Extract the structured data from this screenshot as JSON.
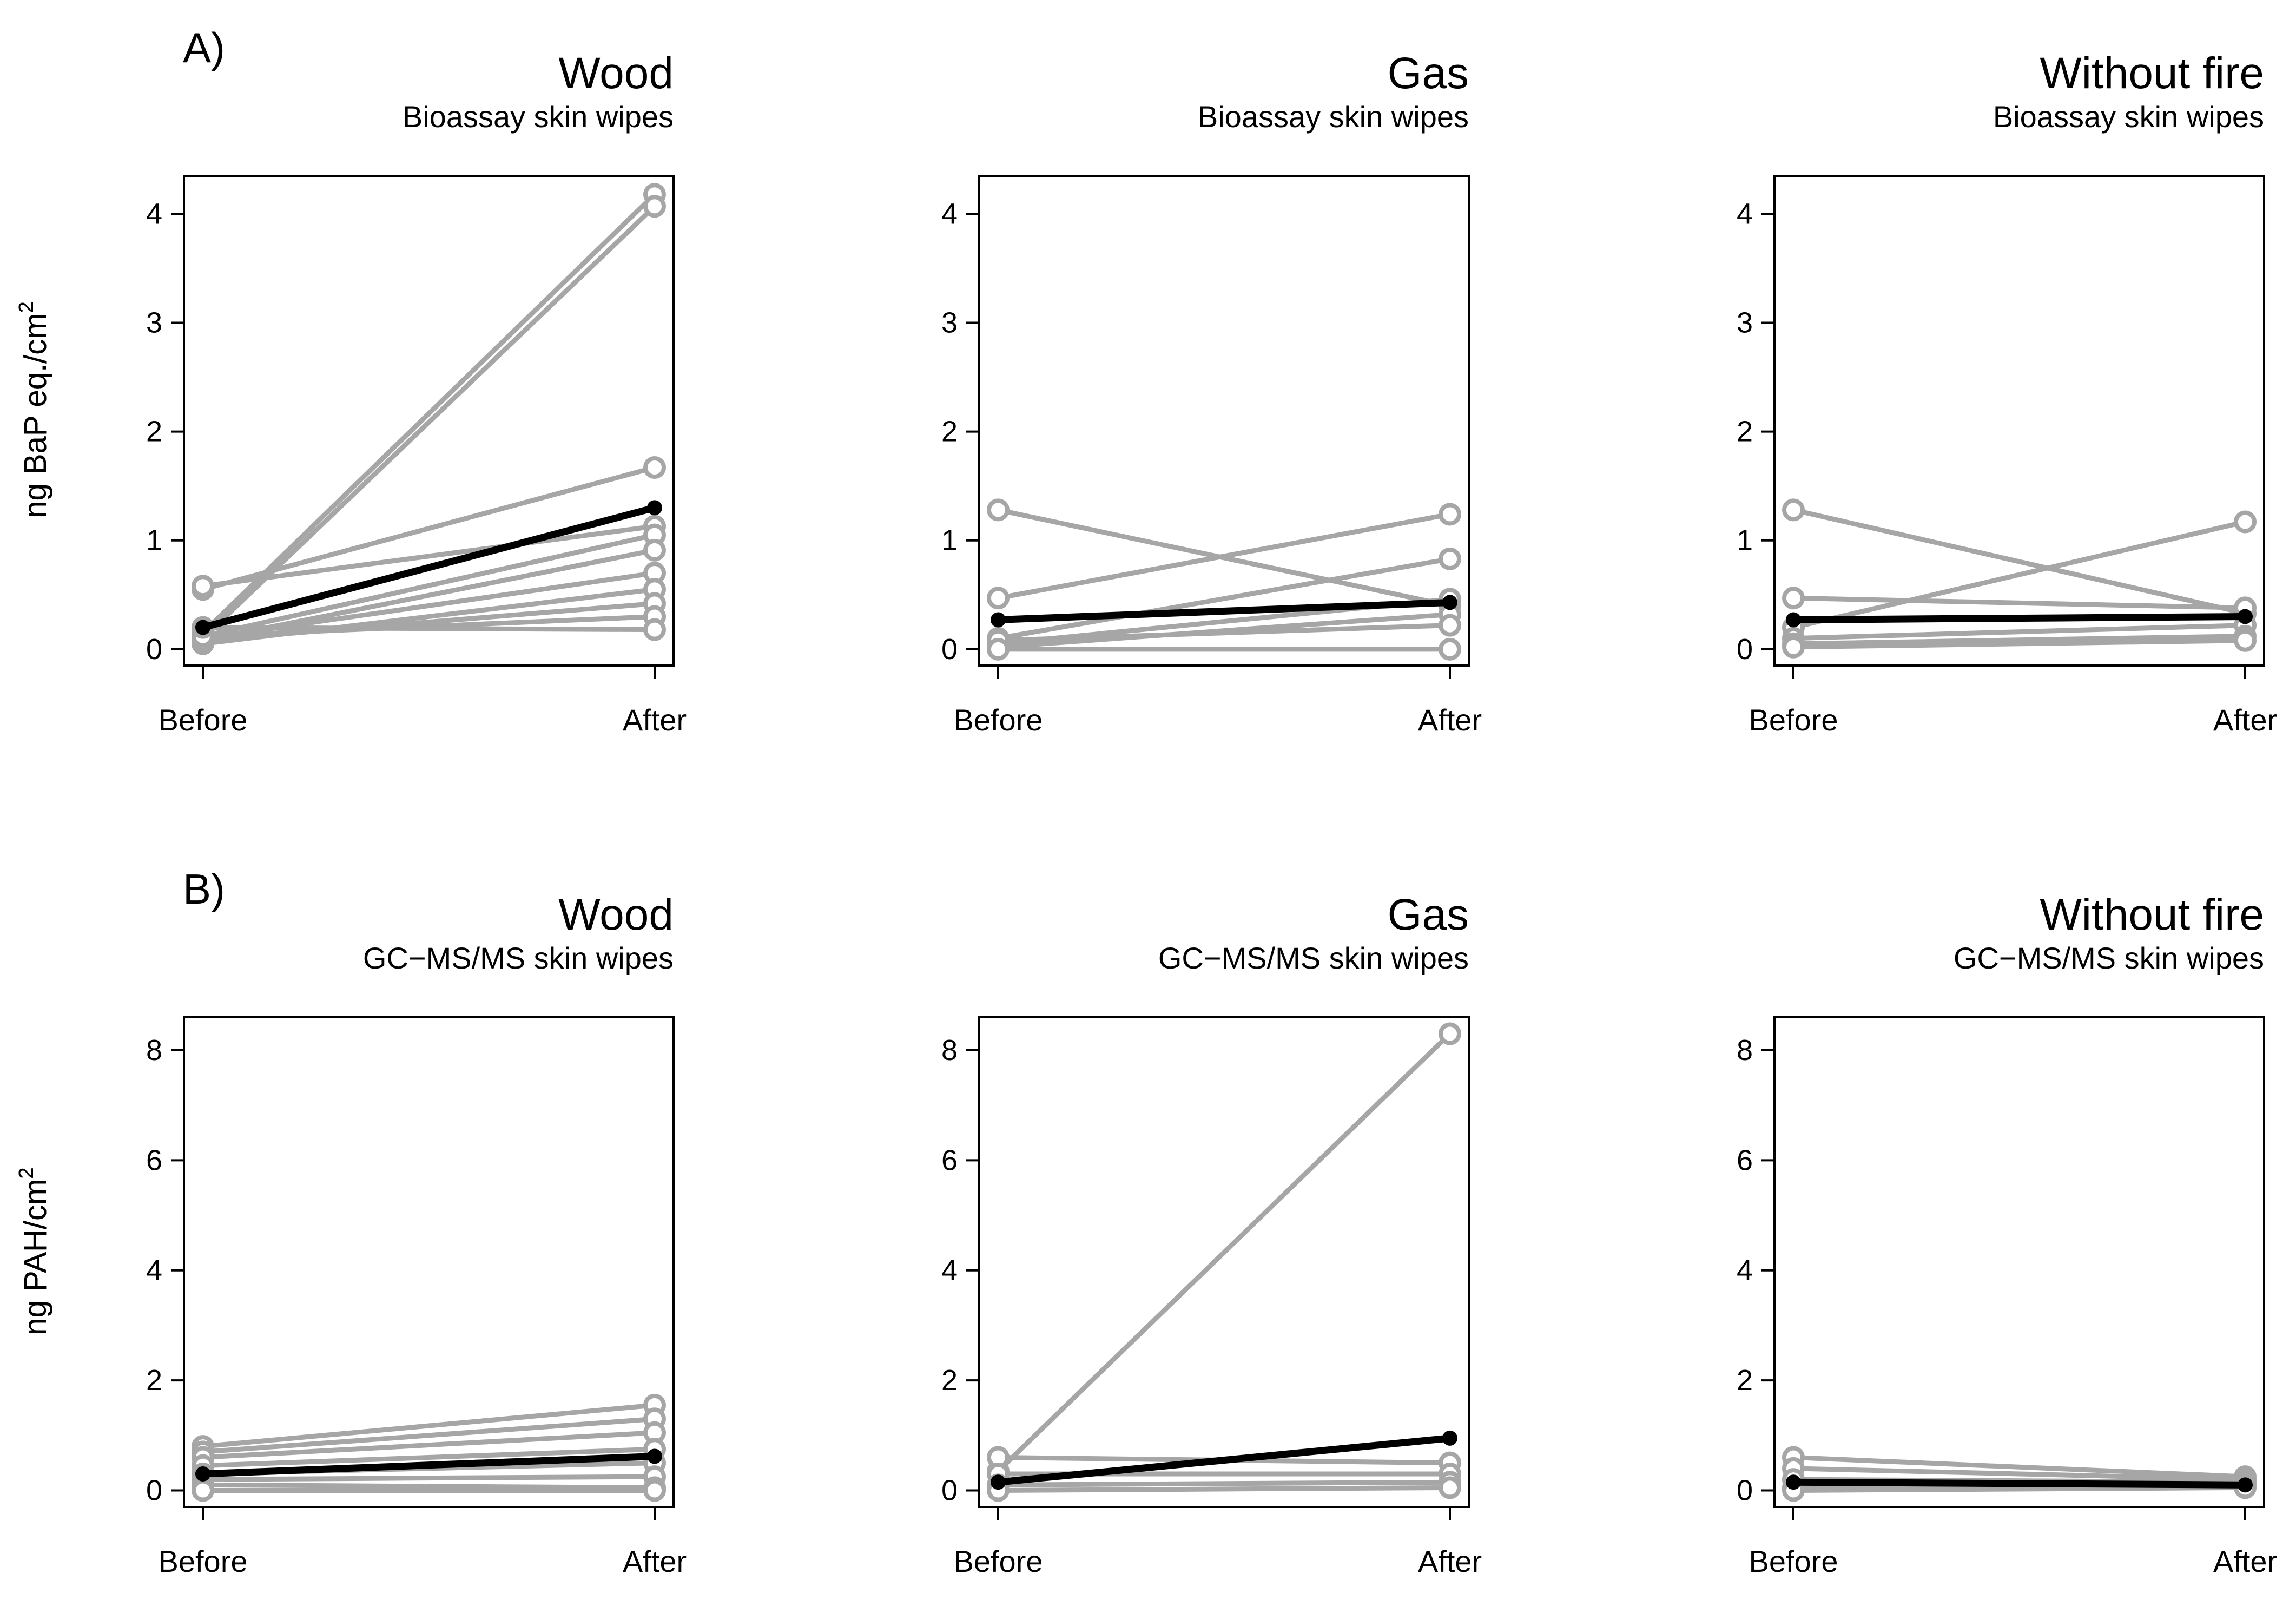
{
  "chart_data": [
    {
      "type": "line",
      "panel_label": "A)",
      "title": "Wood",
      "subtitle": "Bioassay skin wipes",
      "ylabel": "ng BaP eq./cm",
      "ylabel_sup": "2",
      "categories": [
        "Before",
        "After"
      ],
      "ylim": [
        -0.15,
        4.35
      ],
      "yticks": [
        "0",
        "1",
        "2",
        "3",
        "4"
      ],
      "series": [
        {
          "name": "participant",
          "values": [
            0.15,
            4.18
          ]
        },
        {
          "name": "participant",
          "values": [
            0.1,
            4.07
          ]
        },
        {
          "name": "participant",
          "values": [
            0.55,
            1.67
          ]
        },
        {
          "name": "participant",
          "values": [
            0.58,
            1.13
          ]
        },
        {
          "name": "participant",
          "values": [
            0.12,
            1.05
          ]
        },
        {
          "name": "participant",
          "values": [
            0.08,
            0.91
          ]
        },
        {
          "name": "participant",
          "values": [
            0.1,
            0.7
          ]
        },
        {
          "name": "participant",
          "values": [
            0.05,
            0.55
          ]
        },
        {
          "name": "participant",
          "values": [
            0.08,
            0.42
          ]
        },
        {
          "name": "participant",
          "values": [
            0.12,
            0.3
          ]
        },
        {
          "name": "participant",
          "values": [
            0.2,
            0.18
          ]
        },
        {
          "name": "median",
          "values": [
            0.2,
            1.3
          ]
        }
      ]
    },
    {
      "type": "line",
      "panel_label": "",
      "title": "Gas",
      "subtitle": "Bioassay skin wipes",
      "ylabel": "ng BaP eq./cm",
      "ylabel_sup": "2",
      "categories": [
        "Before",
        "After"
      ],
      "ylim": [
        -0.15,
        4.35
      ],
      "yticks": [
        "0",
        "1",
        "2",
        "3",
        "4"
      ],
      "series": [
        {
          "name": "participant",
          "values": [
            1.28,
            0.4
          ]
        },
        {
          "name": "participant",
          "values": [
            0.47,
            1.24
          ]
        },
        {
          "name": "participant",
          "values": [
            0.1,
            0.83
          ]
        },
        {
          "name": "participant",
          "values": [
            0.05,
            0.46
          ]
        },
        {
          "name": "participant",
          "values": [
            0.02,
            0.32
          ]
        },
        {
          "name": "participant",
          "values": [
            0.08,
            0.22
          ]
        },
        {
          "name": "participant",
          "values": [
            0.0,
            0.0
          ]
        },
        {
          "name": "median",
          "values": [
            0.27,
            0.43
          ]
        }
      ]
    },
    {
      "type": "line",
      "panel_label": "",
      "title": "Without fire",
      "subtitle": "Bioassay skin wipes",
      "ylabel": "ng BaP eq./cm",
      "ylabel_sup": "2",
      "categories": [
        "Before",
        "After"
      ],
      "ylim": [
        -0.15,
        4.35
      ],
      "yticks": [
        "0",
        "1",
        "2",
        "3",
        "4"
      ],
      "series": [
        {
          "name": "participant",
          "values": [
            1.28,
            0.33
          ]
        },
        {
          "name": "participant",
          "values": [
            0.47,
            0.38
          ]
        },
        {
          "name": "participant",
          "values": [
            0.2,
            1.17
          ]
        },
        {
          "name": "participant",
          "values": [
            0.1,
            0.22
          ]
        },
        {
          "name": "participant",
          "values": [
            0.05,
            0.12
          ]
        },
        {
          "name": "participant",
          "values": [
            0.02,
            0.08
          ]
        },
        {
          "name": "median",
          "values": [
            0.27,
            0.3
          ]
        }
      ]
    },
    {
      "type": "line",
      "panel_label": "B)",
      "title": "Wood",
      "subtitle": "GC−MS/MS skin wipes",
      "ylabel": "ng PAH/cm",
      "ylabel_sup": "2",
      "categories": [
        "Before",
        "After"
      ],
      "ylim": [
        -0.3,
        8.6
      ],
      "yticks": [
        "0",
        "2",
        "4",
        "6",
        "8"
      ],
      "series": [
        {
          "name": "participant",
          "values": [
            0.8,
            1.55
          ]
        },
        {
          "name": "participant",
          "values": [
            0.7,
            1.3
          ]
        },
        {
          "name": "participant",
          "values": [
            0.6,
            1.05
          ]
        },
        {
          "name": "participant",
          "values": [
            0.45,
            0.75
          ]
        },
        {
          "name": "participant",
          "values": [
            0.3,
            0.5
          ]
        },
        {
          "name": "participant",
          "values": [
            0.2,
            0.25
          ]
        },
        {
          "name": "participant",
          "values": [
            0.1,
            0.05
          ]
        },
        {
          "name": "participant",
          "values": [
            0.0,
            0.0
          ]
        },
        {
          "name": "median",
          "values": [
            0.3,
            0.62
          ]
        }
      ]
    },
    {
      "type": "line",
      "panel_label": "",
      "title": "Gas",
      "subtitle": "GC−MS/MS skin wipes",
      "ylabel": "ng PAH/cm",
      "ylabel_sup": "2",
      "categories": [
        "Before",
        "After"
      ],
      "ylim": [
        -0.3,
        8.6
      ],
      "yticks": [
        "0",
        "2",
        "4",
        "6",
        "8"
      ],
      "series": [
        {
          "name": "participant",
          "values": [
            0.35,
            8.3
          ]
        },
        {
          "name": "participant",
          "values": [
            0.6,
            0.5
          ]
        },
        {
          "name": "participant",
          "values": [
            0.3,
            0.3
          ]
        },
        {
          "name": "participant",
          "values": [
            0.1,
            0.15
          ]
        },
        {
          "name": "participant",
          "values": [
            0.0,
            0.05
          ]
        },
        {
          "name": "median",
          "values": [
            0.15,
            0.95
          ]
        }
      ]
    },
    {
      "type": "line",
      "panel_label": "",
      "title": "Without fire",
      "subtitle": "GC−MS/MS skin wipes",
      "ylabel": "ng PAH/cm",
      "ylabel_sup": "2",
      "categories": [
        "Before",
        "After"
      ],
      "ylim": [
        -0.3,
        8.6
      ],
      "yticks": [
        "0",
        "2",
        "4",
        "6",
        "8"
      ],
      "series": [
        {
          "name": "participant",
          "values": [
            0.6,
            0.25
          ]
        },
        {
          "name": "participant",
          "values": [
            0.4,
            0.2
          ]
        },
        {
          "name": "participant",
          "values": [
            0.2,
            0.15
          ]
        },
        {
          "name": "participant",
          "values": [
            0.05,
            0.1
          ]
        },
        {
          "name": "participant",
          "values": [
            0.0,
            0.05
          ]
        },
        {
          "name": "median",
          "values": [
            0.15,
            0.1
          ]
        }
      ]
    }
  ],
  "colors": {
    "participant": "#a6a6a6",
    "median": "#000000",
    "axis": "#000000"
  }
}
